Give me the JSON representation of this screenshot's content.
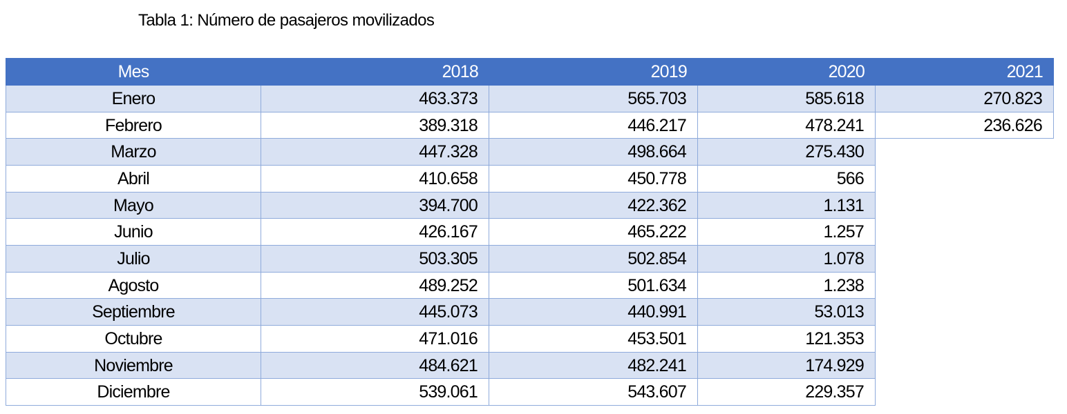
{
  "title": "Tabla 1: Número de pasajeros movilizados",
  "table": {
    "headers": [
      "Mes",
      "2018",
      "2019",
      "2020",
      "2021"
    ],
    "rows": [
      [
        "Enero",
        "463.373",
        "565.703",
        "585.618",
        "270.823"
      ],
      [
        "Febrero",
        "389.318",
        "446.217",
        "478.241",
        "236.626"
      ],
      [
        "Marzo",
        "447.328",
        "498.664",
        "275.430"
      ],
      [
        "Abril",
        "410.658",
        "450.778",
        "566"
      ],
      [
        "Mayo",
        "394.700",
        "422.362",
        "1.131"
      ],
      [
        "Junio",
        "426.167",
        "465.222",
        "1.257"
      ],
      [
        "Julio",
        "503.305",
        "502.854",
        "1.078"
      ],
      [
        "Agosto",
        "489.252",
        "501.634",
        "1.238"
      ],
      [
        "Septiembre",
        "445.073",
        "440.991",
        "53.013"
      ],
      [
        "Octubre",
        "471.016",
        "453.501",
        "121.353"
      ],
      [
        "Noviembre",
        "484.621",
        "482.241",
        "174.929"
      ],
      [
        "Diciembre",
        "539.061",
        "543.607",
        "229.357"
      ]
    ]
  },
  "colors": {
    "header_bg": "#4472c4",
    "band_bg": "#d9e2f3",
    "border": "#8eaadb"
  }
}
